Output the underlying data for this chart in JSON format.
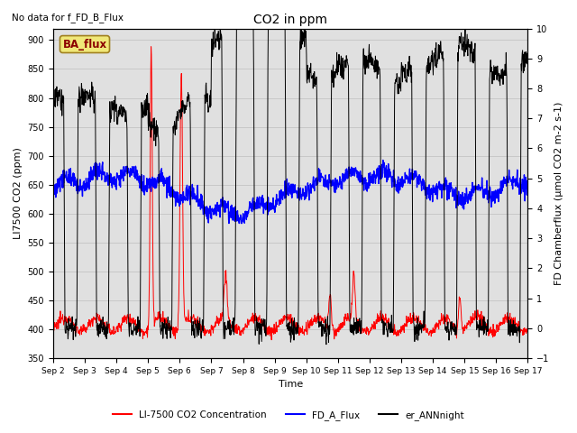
{
  "title": "CO2 in ppm",
  "top_left_text": "No data for f_FD_B_Flux",
  "box_label": "BA_flux",
  "xlabel": "Time",
  "ylabel_left": "LI7500 CO2 (ppm)",
  "ylabel_right": "FD Chamberflux (μmol CO2 m-2 s-1)",
  "ylim_left": [
    350,
    920
  ],
  "ylim_right": [
    -1.0,
    10.0
  ],
  "yticks_left": [
    350,
    400,
    450,
    500,
    550,
    600,
    650,
    700,
    750,
    800,
    850,
    900
  ],
  "yticks_right": [
    -1.0,
    0.0,
    1.0,
    2.0,
    3.0,
    4.0,
    5.0,
    6.0,
    7.0,
    8.0,
    9.0,
    10.0
  ],
  "xtick_labels": [
    "Sep 2",
    "Sep 3",
    "Sep 4",
    "Sep 5",
    "Sep 6",
    "Sep 7",
    "Sep 8",
    "Sep 9",
    "Sep 10",
    "Sep 11",
    "Sep 12",
    "Sep 13",
    "Sep 14",
    "Sep 15",
    "Sep 16",
    "Sep 17"
  ],
  "grid_color": "#c8c8c8",
  "bg_color": "#e0e0e0",
  "legend_items": [
    {
      "label": "LI-7500 CO2 Concentration",
      "color": "red"
    },
    {
      "label": "FD_A_Flux",
      "color": "blue"
    },
    {
      "label": "er_ANNnight",
      "color": "black"
    }
  ]
}
